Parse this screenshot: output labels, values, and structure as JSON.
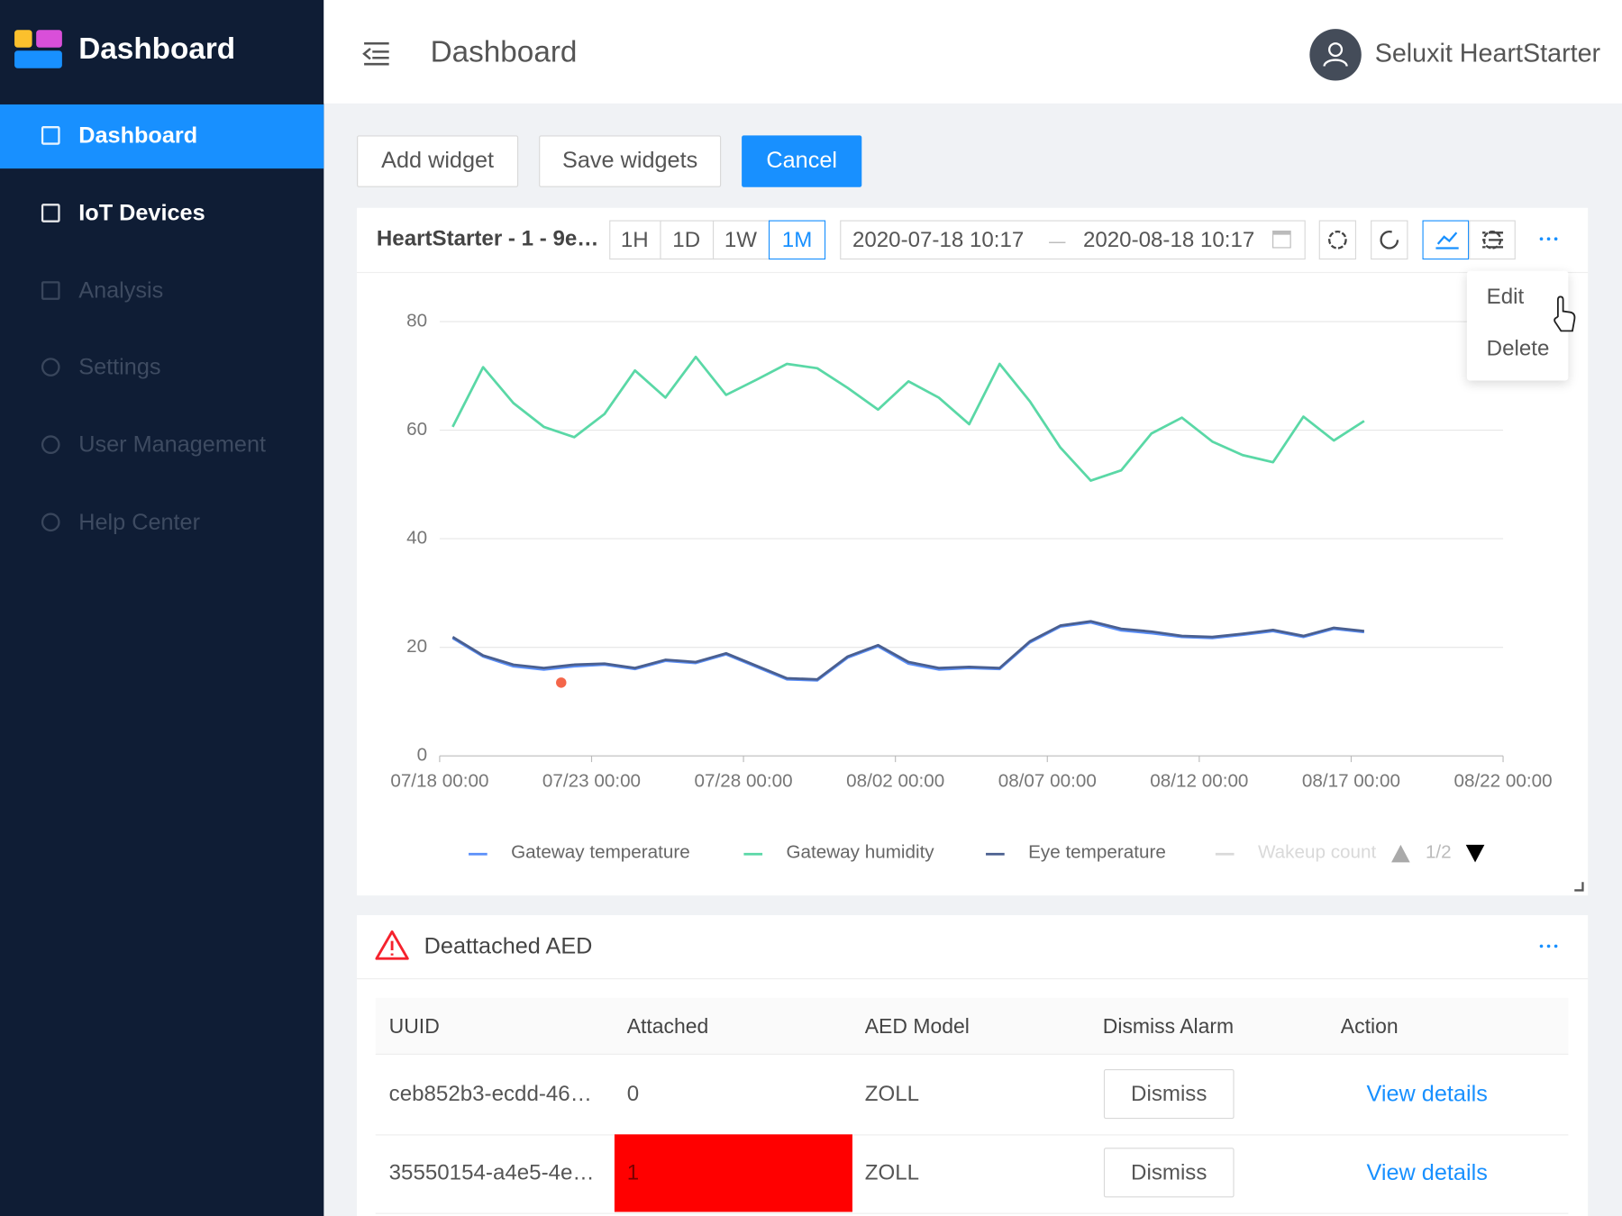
{
  "sidebar": {
    "brand": "Dashboard",
    "items": [
      "Dashboard",
      "IoT Devices",
      "Analysis",
      "Settings",
      "User Management",
      "Help Center"
    ],
    "active_index": 0,
    "enabled_count": 2
  },
  "header": {
    "title": "Dashboard",
    "user": "Seluxit HeartStarter"
  },
  "toolbar": [
    "Add widget",
    "Save widgets",
    "Cancel"
  ],
  "widget": {
    "title": "HeartStarter - 1 - 9e…",
    "ranges": [
      "1H",
      "1D",
      "1W",
      "1M"
    ],
    "active_range_index": 3,
    "start": "2020-07-18 10:17",
    "end": "2020-08-18 10:17",
    "menu": [
      "Edit",
      "Delete"
    ],
    "legend_page": "1/2"
  },
  "chart_data": {
    "type": "line",
    "x": [
      "07/18 10:17",
      "07/19 10:17",
      "07/20 10:17",
      "07/21 10:17",
      "07/22 10:17",
      "07/23 10:17",
      "07/24 10:17",
      "07/25 10:17",
      "07/26 10:17",
      "07/27 10:17",
      "07/28 10:17",
      "07/29 10:17",
      "07/30 10:17",
      "07/31 10:17",
      "08/01 10:17",
      "08/02 10:17",
      "08/03 10:17",
      "08/04 10:17",
      "08/05 10:17",
      "08/06 10:17",
      "08/07 10:17",
      "08/08 10:17",
      "08/09 10:17",
      "08/10 10:17",
      "08/11 10:17",
      "08/12 10:17",
      "08/13 10:17",
      "08/14 10:17",
      "08/15 10:17",
      "08/16 10:17",
      "08/17 10:17"
    ],
    "series": [
      {
        "name": "Gateway temperature",
        "color": "#5b8ff9",
        "values": [
          21.7,
          18.3,
          16.5,
          15.9,
          16.5,
          16.8,
          16.0,
          17.5,
          17.1,
          18.7,
          16.4,
          14.1,
          13.9,
          18.1,
          20.2,
          17.0,
          15.9,
          16.2,
          16.0,
          20.9,
          23.8,
          24.6,
          23.1,
          22.6,
          21.9,
          21.7,
          22.3,
          23.0,
          21.9,
          23.4,
          22.8
        ]
      },
      {
        "name": "Gateway humidity",
        "color": "#5ad8a6",
        "values": [
          60.6,
          71.6,
          65.0,
          60.6,
          58.7,
          63.0,
          71.0,
          66.0,
          73.5,
          66.5,
          69.3,
          72.2,
          71.4,
          67.8,
          63.8,
          69.0,
          66.0,
          61.1,
          72.2,
          65.3,
          56.8,
          50.7,
          52.6,
          59.4,
          62.3,
          57.9,
          55.4,
          54.1,
          62.5,
          58.1,
          61.7
        ]
      },
      {
        "name": "Eye temperature",
        "color": "#4a5f8f",
        "values": [
          21.9,
          18.5,
          16.8,
          16.2,
          16.8,
          17.0,
          16.2,
          17.7,
          17.3,
          18.9,
          16.6,
          14.3,
          14.1,
          18.3,
          20.4,
          17.3,
          16.2,
          16.4,
          16.2,
          21.1,
          24.0,
          24.8,
          23.4,
          22.9,
          22.1,
          21.9,
          22.5,
          23.2,
          22.1,
          23.6,
          23.0
        ]
      },
      {
        "name": "Wakeup count",
        "color": "#d9d9d9",
        "hidden": true
      }
    ],
    "marker": {
      "x": "07/22 00:00",
      "value": 13.5,
      "color": "#f4664a"
    },
    "xlim": [
      "07/18 00:00",
      "08/22 00:00"
    ],
    "xticks": [
      "07/18 00:00",
      "07/23 00:00",
      "07/28 00:00",
      "08/02 00:00",
      "08/07 00:00",
      "08/12 00:00",
      "08/17 00:00",
      "08/22 00:00"
    ],
    "ylim": [
      0,
      80
    ],
    "yticks": [
      0,
      20,
      40,
      60,
      80
    ],
    "grid": true
  },
  "alarm": {
    "title": "Deattached AED",
    "table": {
      "columns": [
        "UUID",
        "Attached",
        "AED Model",
        "Dismiss Alarm",
        "Action"
      ],
      "rows": [
        [
          "ceb852b3-ecdd-46…",
          "0",
          "ZOLL",
          "Dismiss",
          "View details"
        ],
        [
          "35550154-a4e5-4e…",
          "1",
          "ZOLL",
          "Dismiss",
          "View details"
        ]
      ],
      "highlight_cells": [
        [
          1,
          1
        ]
      ],
      "highlight_color": "#ff0000"
    }
  }
}
